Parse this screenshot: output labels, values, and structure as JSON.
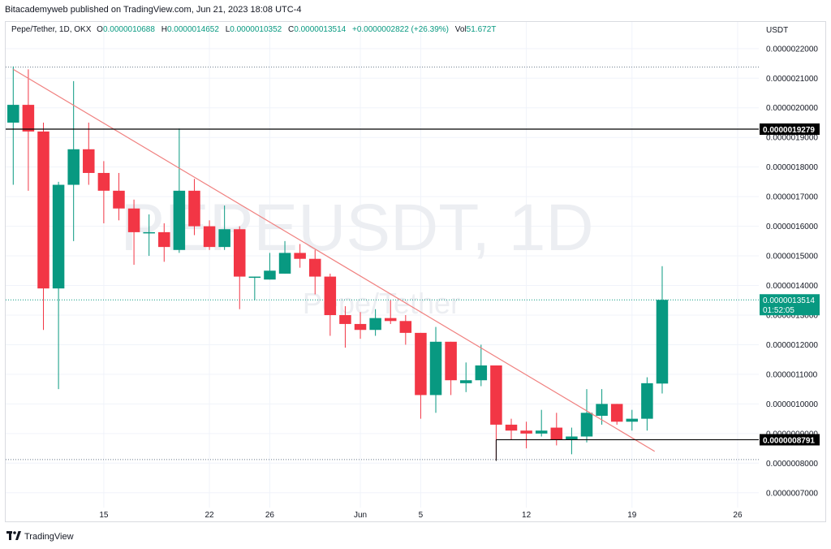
{
  "header": {
    "published": "Bitacademyweb published on TradingView.com, Jun 21, 2023 18:08 UTC-4"
  },
  "legend": {
    "symbol": "Pepe/Tether, 1D, OKX",
    "o_label": "O",
    "o": "0.0000010688",
    "h_label": "H",
    "h": "0.0000014652",
    "l_label": "L",
    "l": "0.0000010352",
    "c_label": "C",
    "c": "0.0000013514",
    "change": "+0.0000002822 (+26.39%)",
    "vol_label": "Vol",
    "vol": "51.672T"
  },
  "watermark": {
    "symbol": "PEPEUSDT, 1D",
    "name": "Pepe/Tether"
  },
  "footer": {
    "brand": "TradingView"
  },
  "colors": {
    "up": "#089981",
    "down": "#f23645",
    "trend": "#f0807f",
    "level": "#000000"
  },
  "chart_data": {
    "type": "candlestick",
    "currency": "USDT",
    "x_tick_labels": [
      {
        "label": "15",
        "index": 6
      },
      {
        "label": "22",
        "index": 13
      },
      {
        "label": "26",
        "index": 17
      },
      {
        "label": "Jun",
        "index": 23
      },
      {
        "label": "5",
        "index": 27
      },
      {
        "label": "12",
        "index": 34
      },
      {
        "label": "19",
        "index": 41
      },
      {
        "label": "26",
        "index": 48
      }
    ],
    "y_ticks": [
      7e-07,
      8e-07,
      9e-07,
      1e-06,
      1.1e-06,
      1.2e-06,
      1.3e-06,
      1.4e-06,
      1.5e-06,
      1.6e-06,
      1.7e-06,
      1.8e-06,
      1.9e-06,
      2e-06,
      2.1e-06,
      2.2e-06
    ],
    "y_tick_labels": [
      "0.0000007000",
      "0.0000008000",
      "0.0000009000",
      "0.0000010000",
      "0.0000011000",
      "0.0000012000",
      "0.0000013000",
      "0.0000014000",
      "0.0000015000",
      "0.0000016000",
      "0.0000017000",
      "0.0000018000",
      "0.0000019000",
      "0.0000020000",
      "0.0000021000",
      "0.0000022000"
    ],
    "ylim": [
      6.5e-07,
      2.29e-06
    ],
    "x_range": [
      -0.5,
      49.4
    ],
    "candles": [
      {
        "o": 1.95e-06,
        "h": 2.14e-06,
        "l": 1.74e-06,
        "c": 2.01e-06
      },
      {
        "o": 2.01e-06,
        "h": 2.13e-06,
        "l": 1.72e-06,
        "c": 1.92e-06
      },
      {
        "o": 1.92e-06,
        "h": 1.95e-06,
        "l": 1.25e-06,
        "c": 1.39e-06
      },
      {
        "o": 1.39e-06,
        "h": 1.75e-06,
        "l": 1.05e-06,
        "c": 1.74e-06
      },
      {
        "o": 1.74e-06,
        "h": 2.09e-06,
        "l": 1.55e-06,
        "c": 1.86e-06
      },
      {
        "o": 1.86e-06,
        "h": 1.95e-06,
        "l": 1.74e-06,
        "c": 1.78e-06
      },
      {
        "o": 1.78e-06,
        "h": 1.82e-06,
        "l": 1.61e-06,
        "c": 1.72e-06
      },
      {
        "o": 1.72e-06,
        "h": 1.78e-06,
        "l": 1.62e-06,
        "c": 1.66e-06
      },
      {
        "o": 1.66e-06,
        "h": 1.69e-06,
        "l": 1.47e-06,
        "c": 1.58e-06
      },
      {
        "o": 1.58e-06,
        "h": 1.64e-06,
        "l": 1.5e-06,
        "c": 1.58e-06
      },
      {
        "o": 1.58e-06,
        "h": 1.61e-06,
        "l": 1.48e-06,
        "c": 1.53e-06
      },
      {
        "o": 1.52e-06,
        "h": 1.93e-06,
        "l": 1.51e-06,
        "c": 1.72e-06
      },
      {
        "o": 1.72e-06,
        "h": 1.76e-06,
        "l": 1.57e-06,
        "c": 1.6e-06
      },
      {
        "o": 1.6e-06,
        "h": 1.62e-06,
        "l": 1.52e-06,
        "c": 1.53e-06
      },
      {
        "o": 1.53e-06,
        "h": 1.67e-06,
        "l": 1.52e-06,
        "c": 1.59e-06
      },
      {
        "o": 1.59e-06,
        "h": 1.6e-06,
        "l": 1.32e-06,
        "c": 1.43e-06
      },
      {
        "o": 1.43e-06,
        "h": 1.43e-06,
        "l": 1.35e-06,
        "c": 1.43e-06
      },
      {
        "o": 1.42e-06,
        "h": 1.51e-06,
        "l": 1.42e-06,
        "c": 1.45e-06
      },
      {
        "o": 1.44e-06,
        "h": 1.55e-06,
        "l": 1.44e-06,
        "c": 1.51e-06
      },
      {
        "o": 1.51e-06,
        "h": 1.54e-06,
        "l": 1.46e-06,
        "c": 1.49e-06
      },
      {
        "o": 1.49e-06,
        "h": 1.52e-06,
        "l": 1.37e-06,
        "c": 1.43e-06
      },
      {
        "o": 1.43e-06,
        "h": 1.44e-06,
        "l": 1.23e-06,
        "c": 1.3e-06
      },
      {
        "o": 1.3e-06,
        "h": 1.33e-06,
        "l": 1.19e-06,
        "c": 1.27e-06
      },
      {
        "o": 1.27e-06,
        "h": 1.31e-06,
        "l": 1.22e-06,
        "c": 1.25e-06
      },
      {
        "o": 1.25e-06,
        "h": 1.32e-06,
        "l": 1.23e-06,
        "c": 1.29e-06
      },
      {
        "o": 1.29e-06,
        "h": 1.35e-06,
        "l": 1.27e-06,
        "c": 1.28e-06
      },
      {
        "o": 1.28e-06,
        "h": 1.3e-06,
        "l": 1.2e-06,
        "c": 1.24e-06
      },
      {
        "o": 1.24e-06,
        "h": 1.24e-06,
        "l": 9.5e-07,
        "c": 1.03e-06
      },
      {
        "o": 1.03e-06,
        "h": 1.26e-06,
        "l": 9.7e-07,
        "c": 1.21e-06
      },
      {
        "o": 1.21e-06,
        "h": 1.21e-06,
        "l": 1.03e-06,
        "c": 1.08e-06
      },
      {
        "o": 1.07e-06,
        "h": 1.14e-06,
        "l": 1.04e-06,
        "c": 1.08e-06
      },
      {
        "o": 1.08e-06,
        "h": 1.2e-06,
        "l": 1.06e-06,
        "c": 1.13e-06
      },
      {
        "o": 1.13e-06,
        "h": 1.13e-06,
        "l": 8.1e-07,
        "c": 9.3e-07
      },
      {
        "o": 9.3e-07,
        "h": 9.5e-07,
        "l": 8.8e-07,
        "c": 9.1e-07
      },
      {
        "o": 9.1e-07,
        "h": 9.4e-07,
        "l": 8.5e-07,
        "c": 9e-07
      },
      {
        "o": 9e-07,
        "h": 9.8e-07,
        "l": 8.9e-07,
        "c": 9.1e-07
      },
      {
        "o": 9.2e-07,
        "h": 9.7e-07,
        "l": 8.6e-07,
        "c": 8.8e-07
      },
      {
        "o": 8.8e-07,
        "h": 9.2e-07,
        "l": 8.3e-07,
        "c": 8.9e-07
      },
      {
        "o": 8.9e-07,
        "h": 1.05e-06,
        "l": 8.7e-07,
        "c": 9.7e-07
      },
      {
        "o": 9.6e-07,
        "h": 1.05e-06,
        "l": 9.3e-07,
        "c": 1e-06
      },
      {
        "o": 1e-06,
        "h": 1e-06,
        "l": 9.3e-07,
        "c": 9.4e-07
      },
      {
        "o": 9.4e-07,
        "h": 9.8e-07,
        "l": 9.1e-07,
        "c": 9.5e-07
      },
      {
        "o": 9.5e-07,
        "h": 1.09e-06,
        "l": 9.1e-07,
        "c": 1.07e-06
      },
      {
        "o": 1.0688e-06,
        "h": 1.4652e-06,
        "l": 1.0352e-06,
        "c": 1.3514e-06
      }
    ],
    "horizontal_levels": [
      {
        "value": 1.9279e-06,
        "label": "0.0000019279"
      },
      {
        "value": 8.791e-07,
        "label": "0.0000008791"
      }
    ],
    "dotted_levels": [
      2.1375e-06,
      1.3514e-06,
      8.12e-07
    ],
    "last_price": {
      "value": 1.3514e-06,
      "label": "0.0000013514",
      "countdown": "01:52:05"
    },
    "trendline": [
      {
        "index": 0,
        "value": 2.13e-06
      },
      {
        "index": 42.5,
        "value": 8.4e-07
      }
    ]
  }
}
